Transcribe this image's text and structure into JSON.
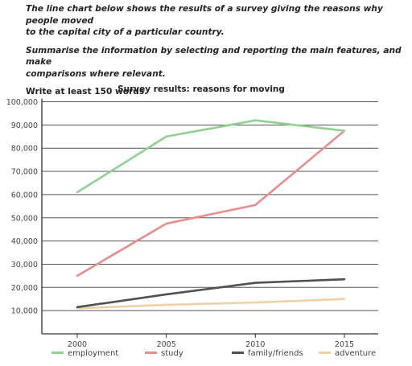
{
  "prompt": {
    "line1": "The line chart below shows the results of a survey giving the reasons why people moved",
    "line2": "to the capital city of a particular country.",
    "line3": "Summarise the information by selecting and reporting the main features, and make",
    "line4": "comparisons where relevant.",
    "line5": "Write at least 150 words."
  },
  "chart_data": {
    "type": "line",
    "title": "Survey results: reasons for moving",
    "xlabel": "",
    "ylabel": "",
    "x": [
      2000,
      2005,
      2010,
      2015
    ],
    "x_ticks": [
      "2000",
      "2005",
      "2010",
      "2015"
    ],
    "ylim": [
      0,
      100000
    ],
    "y_ticks": [
      "10,000",
      "20,000",
      "30,000",
      "40,000",
      "50,000",
      "60,000",
      "70,000",
      "80,000",
      "90,000",
      "100,000"
    ],
    "y_tick_values": [
      10000,
      20000,
      30000,
      40000,
      50000,
      60000,
      70000,
      80000,
      90000,
      100000
    ],
    "grid": true,
    "legend_position": "bottom",
    "series": [
      {
        "name": "employment",
        "color": "#8fd18f",
        "values": [
          61000,
          85000,
          92000,
          87500
        ]
      },
      {
        "name": "study",
        "color": "#ea8c8c",
        "values": [
          25000,
          47500,
          55500,
          87500
        ]
      },
      {
        "name": "family/friends",
        "color": "#505050",
        "values": [
          11500,
          17000,
          22000,
          23500
        ]
      },
      {
        "name": "adventure",
        "color": "#ecd2a5",
        "values": [
          11000,
          12500,
          13500,
          15000
        ]
      }
    ]
  }
}
